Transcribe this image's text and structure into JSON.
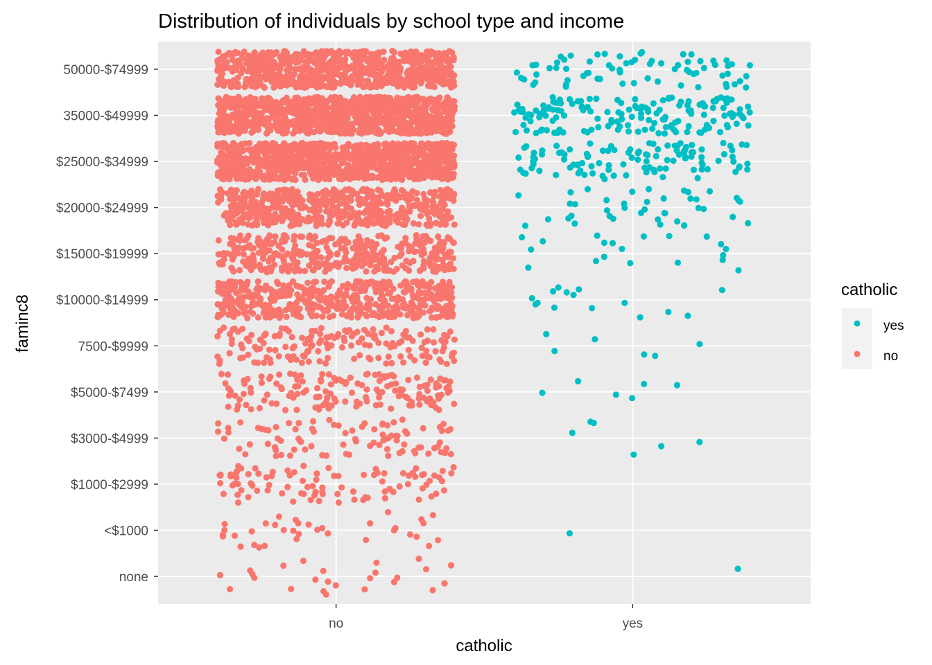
{
  "chart_data": {
    "type": "scatter",
    "subtype": "jitter",
    "title": "Distribution of individuals by school type and income",
    "xlabel": "catholic",
    "ylabel": "faminc8",
    "x_categories": [
      "no",
      "yes"
    ],
    "y_categories": [
      "none",
      "<$1000",
      "$1000-$2999",
      "$3000-$4999",
      "$5000-$7499",
      "7500-$9999",
      "$10000-$14999",
      "$15000-$19999",
      "$20000-$24999",
      "$25000-$34999",
      "35000-$49999",
      "50000-$74999"
    ],
    "legend": {
      "title": "catholic",
      "position": "right",
      "entries": [
        {
          "label": "yes",
          "color": "#00BFC4"
        },
        {
          "label": "no",
          "color": "#F8766D"
        }
      ]
    },
    "series": [
      {
        "name": "no",
        "x": "no",
        "color": "#F8766D",
        "approx_counts": [
          25,
          35,
          95,
          90,
          150,
          170,
          520,
          380,
          560,
          1100,
          1100,
          780
        ]
      },
      {
        "name": "yes",
        "x": "yes",
        "color": "#00BFC4",
        "approx_counts": [
          1,
          1,
          0,
          6,
          6,
          6,
          15,
          20,
          40,
          110,
          160,
          70
        ]
      }
    ],
    "grid": true,
    "jitter_width": 0.4,
    "jitter_height": 0.4
  },
  "colors": {
    "panel_background": "#EBEBEB",
    "grid_major": "#FFFFFF",
    "tick_text": "#4D4D4D"
  }
}
